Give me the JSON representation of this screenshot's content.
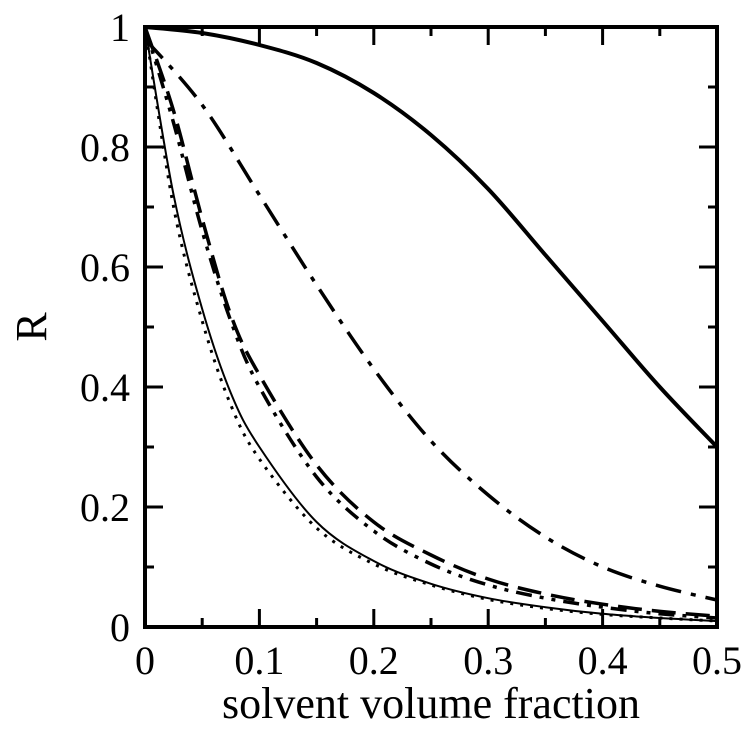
{
  "chart_data": {
    "type": "line",
    "title": "",
    "xlabel": "solvent volume fraction",
    "ylabel": "R",
    "xlim": [
      0,
      0.5
    ],
    "ylim": [
      0,
      1
    ],
    "x_ticks": [
      0,
      0.1,
      0.2,
      0.3,
      0.4,
      0.5
    ],
    "x_tick_labels": [
      "0",
      "0.1",
      "0.2",
      "0.3",
      "0.4",
      "0.5"
    ],
    "y_ticks": [
      0,
      0.2,
      0.4,
      0.6,
      0.8,
      1
    ],
    "y_tick_labels": [
      "0",
      "0.2",
      "0.4",
      "0.6",
      "0.8",
      "1"
    ],
    "grid": false,
    "legend": "none",
    "series": [
      {
        "style": "solid-thick",
        "x": [
          0,
          0.05,
          0.1,
          0.15,
          0.2,
          0.25,
          0.3,
          0.35,
          0.4,
          0.45,
          0.5
        ],
        "y": [
          1.0,
          0.99,
          0.97,
          0.94,
          0.89,
          0.82,
          0.73,
          0.62,
          0.51,
          0.4,
          0.3
        ]
      },
      {
        "style": "dash-dot",
        "x": [
          0,
          0.05,
          0.1,
          0.15,
          0.2,
          0.25,
          0.3,
          0.35,
          0.4,
          0.45,
          0.5
        ],
        "y": [
          0.98,
          0.87,
          0.72,
          0.57,
          0.43,
          0.31,
          0.22,
          0.15,
          0.1,
          0.068,
          0.045
        ]
      },
      {
        "style": "long-dash",
        "x": [
          0,
          0.025,
          0.05,
          0.075,
          0.1,
          0.15,
          0.2,
          0.25,
          0.3,
          0.35,
          0.4,
          0.45,
          0.5
        ],
        "y": [
          1.0,
          0.86,
          0.68,
          0.52,
          0.42,
          0.27,
          0.175,
          0.12,
          0.08,
          0.055,
          0.038,
          0.026,
          0.018
        ]
      },
      {
        "style": "dash-dot-dot",
        "x": [
          0,
          0.025,
          0.05,
          0.075,
          0.1,
          0.15,
          0.2,
          0.25,
          0.3,
          0.35,
          0.4,
          0.45,
          0.5
        ],
        "y": [
          1.0,
          0.84,
          0.66,
          0.51,
          0.4,
          0.25,
          0.16,
          0.105,
          0.07,
          0.048,
          0.033,
          0.022,
          0.015
        ]
      },
      {
        "style": "dotted",
        "x": [
          0,
          0.025,
          0.05,
          0.075,
          0.1,
          0.15,
          0.2,
          0.25,
          0.3,
          0.35,
          0.4,
          0.45,
          0.5
        ],
        "y": [
          1.0,
          0.7,
          0.51,
          0.37,
          0.28,
          0.165,
          0.105,
          0.07,
          0.046,
          0.031,
          0.021,
          0.015,
          0.01
        ]
      },
      {
        "style": "solid-thin",
        "x": [
          0,
          0.025,
          0.05,
          0.075,
          0.1,
          0.15,
          0.2,
          0.25,
          0.3,
          0.35,
          0.4,
          0.45,
          0.5
        ],
        "y": [
          1.0,
          0.72,
          0.53,
          0.39,
          0.3,
          0.175,
          0.11,
          0.072,
          0.048,
          0.033,
          0.022,
          0.015,
          0.01
        ]
      }
    ]
  }
}
